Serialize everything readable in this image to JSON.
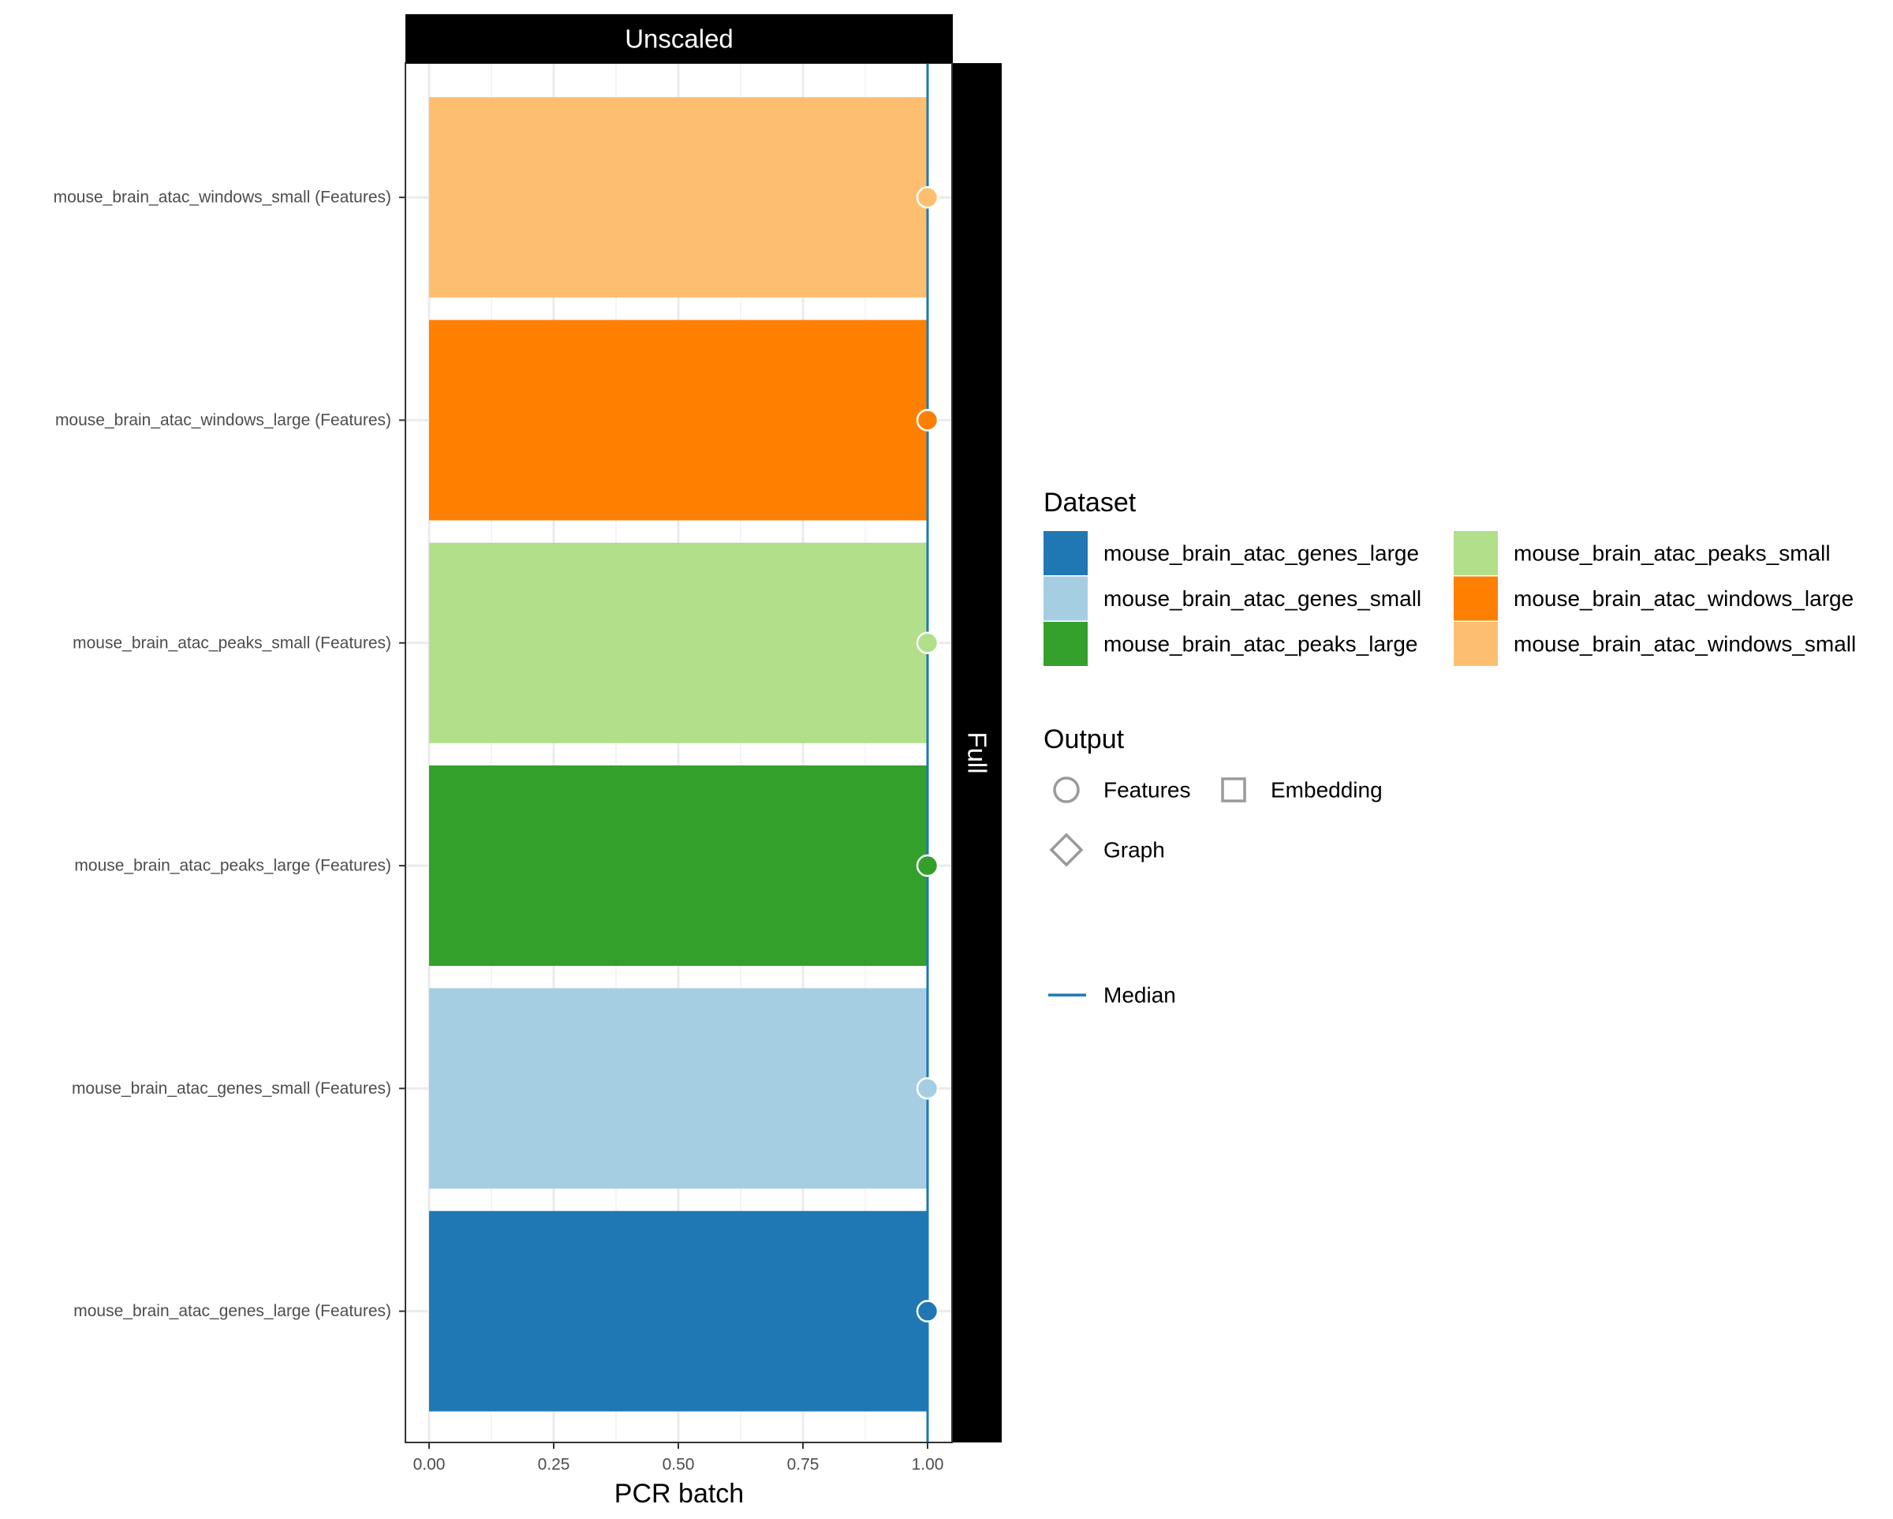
{
  "chart_data": {
    "type": "bar",
    "orientation": "horizontal",
    "facet_top_label": "Unscaled",
    "facet_right_label": "Full",
    "xlabel": "PCR batch",
    "ylabel": "",
    "xlim": [
      0,
      1
    ],
    "x_ticks": [
      "0.00",
      "0.25",
      "0.50",
      "0.75",
      "1.00"
    ],
    "grid": true,
    "categories": [
      "mouse_brain_atac_genes_large (Features)",
      "mouse_brain_atac_genes_small (Features)",
      "mouse_brain_atac_peaks_large (Features)",
      "mouse_brain_atac_peaks_small (Features)",
      "mouse_brain_atac_windows_large (Features)",
      "mouse_brain_atac_windows_small (Features)"
    ],
    "values": [
      1.0,
      1.0,
      1.0,
      1.0,
      1.0,
      1.0
    ],
    "bar_colors": [
      "#1f78b4",
      "#a6cee3",
      "#33a02c",
      "#b2df8a",
      "#ff7f00",
      "#fdbf6f"
    ],
    "points": [
      {
        "x": 1.0,
        "shape": "circle"
      },
      {
        "x": 1.0,
        "shape": "circle"
      },
      {
        "x": 1.0,
        "shape": "circle"
      },
      {
        "x": 1.0,
        "shape": "circle"
      },
      {
        "x": 1.0,
        "shape": "circle"
      },
      {
        "x": 1.0,
        "shape": "circle"
      }
    ],
    "median": 1.0,
    "median_color": "#1f78b4",
    "legend_placement": "right",
    "legends": {
      "dataset": {
        "title": "Dataset",
        "items": [
          {
            "label": "mouse_brain_atac_genes_large",
            "color": "#1f78b4"
          },
          {
            "label": "mouse_brain_atac_genes_small",
            "color": "#a6cee3"
          },
          {
            "label": "mouse_brain_atac_peaks_large",
            "color": "#33a02c"
          },
          {
            "label": "mouse_brain_atac_peaks_small",
            "color": "#b2df8a"
          },
          {
            "label": "mouse_brain_atac_windows_large",
            "color": "#ff7f00"
          },
          {
            "label": "mouse_brain_atac_windows_small",
            "color": "#fdbf6f"
          }
        ]
      },
      "output": {
        "title": "Output",
        "items": [
          {
            "label": "Features",
            "shape": "circle"
          },
          {
            "label": "Embedding",
            "shape": "square"
          },
          {
            "label": "Graph",
            "shape": "diamond"
          }
        ]
      },
      "median": {
        "label": "Median"
      }
    }
  }
}
